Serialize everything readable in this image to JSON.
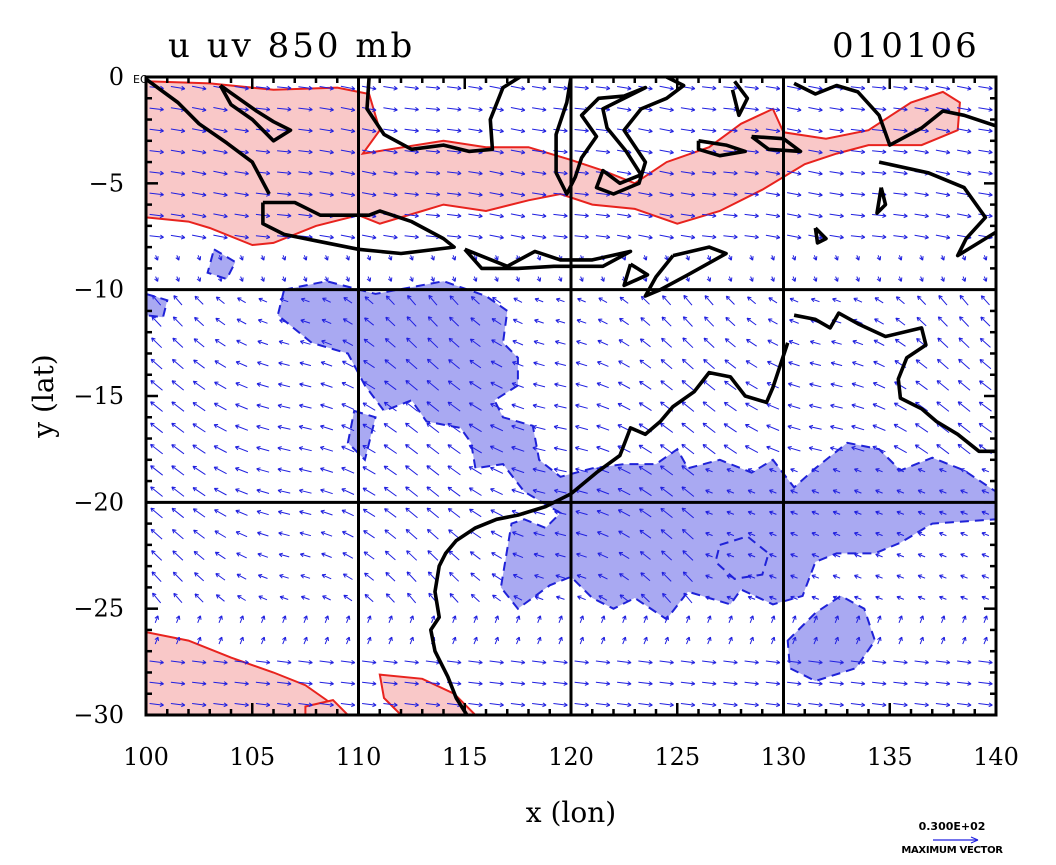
{
  "chart_data": {
    "type": "contour-vector-map",
    "title_left": "u uv 850 mb",
    "title_right": "010106",
    "xlabel": "x (lon)",
    "ylabel": "y (lat)",
    "xlim": [
      100,
      140
    ],
    "ylim": [
      -30,
      0
    ],
    "x_ticks": [
      100,
      105,
      110,
      115,
      120,
      125,
      130,
      135,
      140
    ],
    "x_tick_labels": [
      "100",
      "105",
      "110",
      "115",
      "120",
      "125",
      "130",
      "135",
      "140"
    ],
    "y_ticks": [
      0,
      -5,
      -10,
      -15,
      -20,
      -25,
      -30
    ],
    "y_tick_labels": [
      "0",
      "−5",
      "−10",
      "−15",
      "−20",
      "−25",
      "−30"
    ],
    "y_zero_suffix": "EQ",
    "gridlines_x": [
      110,
      120,
      130
    ],
    "gridlines_y": [
      -10,
      -20
    ],
    "colors": {
      "positive_fill": "#f9c8c8",
      "positive_line": "#e8231e",
      "negative_fill": "#a9a9f2",
      "negative_line": "#1f22d8",
      "vector": "#2020e0",
      "coast": "#000000"
    },
    "positive_regions": [
      [
        [
          100,
          -0.2
        ],
        [
          103,
          -0.3
        ],
        [
          106,
          -0.6
        ],
        [
          109,
          -0.5
        ],
        [
          110.5,
          -0.8
        ],
        [
          111,
          -2.5
        ],
        [
          110.2,
          -3.6
        ],
        [
          111.5,
          -3.4
        ],
        [
          114,
          -3.0
        ],
        [
          116,
          -3.3
        ],
        [
          118,
          -3.3
        ],
        [
          120,
          -3.9
        ],
        [
          121.5,
          -4.4
        ],
        [
          123,
          -5.0
        ],
        [
          124.5,
          -4.0
        ],
        [
          126.5,
          -3.3
        ],
        [
          128,
          -2.2
        ],
        [
          129.5,
          -1.5
        ],
        [
          130,
          -2.6
        ],
        [
          132,
          -2.9
        ],
        [
          134,
          -2.5
        ],
        [
          136,
          -1.2
        ],
        [
          137.5,
          -0.7
        ],
        [
          138.3,
          -1.2
        ],
        [
          138.2,
          -2.5
        ],
        [
          136.5,
          -3.2
        ],
        [
          134,
          -3.2
        ],
        [
          132.5,
          -3.6
        ],
        [
          131,
          -4.1
        ],
        [
          129,
          -5.3
        ],
        [
          127,
          -6.3
        ],
        [
          125,
          -6.9
        ],
        [
          123,
          -6.2
        ],
        [
          121,
          -6.0
        ],
        [
          119.5,
          -5.5
        ],
        [
          118,
          -5.8
        ],
        [
          116,
          -6.3
        ],
        [
          114,
          -6.0
        ],
        [
          113,
          -6.3
        ],
        [
          111,
          -6.9
        ],
        [
          110,
          -6.5
        ],
        [
          108,
          -7.0
        ],
        [
          106,
          -7.8
        ],
        [
          105,
          -7.9
        ],
        [
          103,
          -7.1
        ],
        [
          102,
          -6.8
        ],
        [
          100,
          -6.6
        ]
      ],
      [
        [
          100,
          -26.1
        ],
        [
          102,
          -26.5
        ],
        [
          104,
          -27.3
        ],
        [
          106,
          -28.0
        ],
        [
          107.5,
          -28.6
        ],
        [
          108.5,
          -29.3
        ],
        [
          109.3,
          -30
        ],
        [
          100,
          -30
        ]
      ],
      [
        [
          111,
          -28.1
        ],
        [
          113,
          -28.3
        ],
        [
          114.5,
          -29.0
        ],
        [
          115.5,
          -30
        ],
        [
          112,
          -30
        ],
        [
          111.2,
          -29.2
        ]
      ],
      [
        [
          107.5,
          -29.6
        ],
        [
          108.8,
          -29.3
        ],
        [
          109.5,
          -30
        ],
        [
          107.5,
          -30
        ]
      ]
    ],
    "negative_regions": [
      [
        [
          106.5,
          -10.0
        ],
        [
          108.5,
          -9.6
        ],
        [
          110.8,
          -10.2
        ],
        [
          114,
          -9.6
        ],
        [
          116,
          -10.3
        ],
        [
          117,
          -11.0
        ],
        [
          116.8,
          -12.5
        ],
        [
          117.5,
          -13.2
        ],
        [
          117.5,
          -14.5
        ],
        [
          116.4,
          -15.2
        ],
        [
          116.8,
          -16.0
        ],
        [
          118.2,
          -16.4
        ],
        [
          118.5,
          -18.0
        ],
        [
          119.5,
          -18.8
        ],
        [
          121,
          -18.4
        ],
        [
          122.5,
          -18.2
        ],
        [
          124,
          -18.2
        ],
        [
          125,
          -17.5
        ],
        [
          125.5,
          -18.4
        ],
        [
          127,
          -18.0
        ],
        [
          128.5,
          -18.6
        ],
        [
          129.5,
          -18.0
        ],
        [
          130.5,
          -19.3
        ],
        [
          131.5,
          -18.4
        ],
        [
          133,
          -17.2
        ],
        [
          134.5,
          -17.5
        ],
        [
          135.5,
          -18.5
        ],
        [
          137,
          -17.9
        ],
        [
          138.5,
          -18.5
        ],
        [
          140,
          -19.5
        ],
        [
          140,
          -20.8
        ],
        [
          137,
          -21.0
        ],
        [
          135.5,
          -21.9
        ],
        [
          134.3,
          -22.4
        ],
        [
          132.5,
          -22.4
        ],
        [
          131.5,
          -22.8
        ],
        [
          130.9,
          -24.4
        ],
        [
          129.5,
          -24.8
        ],
        [
          128,
          -24.1
        ],
        [
          127.5,
          -24.8
        ],
        [
          125.5,
          -24.2
        ],
        [
          124.5,
          -25.5
        ],
        [
          123,
          -24.5
        ],
        [
          122,
          -25.0
        ],
        [
          121,
          -24.5
        ],
        [
          120,
          -23.5
        ],
        [
          119,
          -23.9
        ],
        [
          117.5,
          -25.0
        ],
        [
          116.7,
          -24.0
        ],
        [
          117.2,
          -21.0
        ],
        [
          117.8,
          -20.8
        ],
        [
          118.8,
          -21.2
        ],
        [
          119.5,
          -20.5
        ],
        [
          117.8,
          -19.5
        ],
        [
          116.8,
          -18.2
        ],
        [
          115.5,
          -18.4
        ],
        [
          115.3,
          -17.2
        ],
        [
          114.8,
          -16.5
        ],
        [
          113.2,
          -16.2
        ],
        [
          112.5,
          -15.2
        ],
        [
          111.2,
          -15.7
        ],
        [
          110.3,
          -14.5
        ],
        [
          109.5,
          -13.0
        ],
        [
          107.8,
          -12.5
        ],
        [
          106.2,
          -11.2
        ]
      ],
      [
        [
          130.2,
          -26.5
        ],
        [
          131.5,
          -25.2
        ],
        [
          132.7,
          -24.4
        ],
        [
          133.8,
          -25.0
        ],
        [
          134.3,
          -26.5
        ],
        [
          133.4,
          -27.8
        ],
        [
          131.5,
          -28.4
        ],
        [
          130.3,
          -27.8
        ]
      ],
      [
        [
          127,
          -22.0
        ],
        [
          128.3,
          -21.6
        ],
        [
          129.3,
          -22.4
        ],
        [
          129,
          -23.4
        ],
        [
          127.7,
          -23.6
        ],
        [
          126.8,
          -22.8
        ]
      ],
      [
        [
          103.2,
          -8.1
        ],
        [
          104.2,
          -8.7
        ],
        [
          103.8,
          -9.5
        ],
        [
          102.9,
          -9.2
        ]
      ],
      [
        [
          100,
          -10.2
        ],
        [
          101,
          -10.5
        ],
        [
          100.8,
          -11.3
        ],
        [
          100,
          -11.2
        ]
      ],
      [
        [
          109.8,
          -15.7
        ],
        [
          110.8,
          -16.0
        ],
        [
          110.3,
          -18.0
        ],
        [
          109.5,
          -17.2
        ]
      ]
    ],
    "coastlines": [
      [
        [
          100,
          -0.1
        ],
        [
          101.5,
          -1.2
        ],
        [
          102.5,
          -2.2
        ],
        [
          103.8,
          -3.1
        ],
        [
          105,
          -4.0
        ],
        [
          105.8,
          -5.5
        ]
      ],
      [
        [
          103.5,
          -0.4
        ],
        [
          105.2,
          -1.6
        ],
        [
          106,
          -2.1
        ],
        [
          106.8,
          -2.5
        ],
        [
          106,
          -3.0
        ],
        [
          105,
          -2.0
        ],
        [
          104,
          -1.3
        ],
        [
          103.5,
          -0.4
        ]
      ],
      [
        [
          110.5,
          0
        ],
        [
          110.4,
          -1.5
        ],
        [
          111.2,
          -2.7
        ],
        [
          112.5,
          -3.4
        ],
        [
          114,
          -3.2
        ],
        [
          115.2,
          -3.5
        ],
        [
          116.3,
          -3.4
        ],
        [
          116.2,
          -2.0
        ],
        [
          116.8,
          -0.5
        ],
        [
          117.6,
          0
        ]
      ],
      [
        [
          105.5,
          -5.9
        ],
        [
          107,
          -5.9
        ],
        [
          108.2,
          -6.5
        ],
        [
          110.5,
          -6.5
        ],
        [
          111,
          -6.3
        ],
        [
          112.5,
          -6.8
        ],
        [
          114,
          -7.6
        ],
        [
          114.5,
          -8.0
        ],
        [
          112,
          -8.3
        ],
        [
          110,
          -8.1
        ],
        [
          108,
          -7.7
        ],
        [
          106.5,
          -7.4
        ],
        [
          105.5,
          -6.9
        ],
        [
          105.5,
          -5.9
        ]
      ],
      [
        [
          115,
          -8.1
        ],
        [
          116,
          -8.5
        ],
        [
          117,
          -8.9
        ],
        [
          118.3,
          -8.2
        ],
        [
          119.5,
          -8.6
        ],
        [
          121,
          -8.6
        ],
        [
          122.8,
          -8.2
        ],
        [
          121.5,
          -8.9
        ],
        [
          119.2,
          -8.9
        ],
        [
          117.5,
          -9.0
        ],
        [
          115.8,
          -9.0
        ],
        [
          115,
          -8.1
        ]
      ],
      [
        [
          120,
          0
        ],
        [
          119.8,
          -1.2
        ],
        [
          119.3,
          -2.7
        ],
        [
          119.3,
          -4.5
        ],
        [
          119.8,
          -5.5
        ],
        [
          120.2,
          -4.7
        ],
        [
          120.5,
          -3.8
        ],
        [
          121.2,
          -2.8
        ],
        [
          120.5,
          -1.8
        ],
        [
          121.3,
          -1.0
        ],
        [
          122.5,
          -0.9
        ],
        [
          123.5,
          -0.5
        ],
        [
          121.5,
          -1.5
        ],
        [
          121.7,
          -2.4
        ],
        [
          122.6,
          -3.5
        ],
        [
          123.3,
          -4.6
        ],
        [
          122.3,
          -5.0
        ],
        [
          121.5,
          -4.4
        ],
        [
          121.2,
          -5.2
        ],
        [
          122,
          -5.5
        ],
        [
          123.2,
          -5.0
        ],
        [
          123.5,
          -4.0
        ],
        [
          122.5,
          -2.5
        ],
        [
          123.3,
          -1.5
        ],
        [
          124.5,
          -1.0
        ],
        [
          125.3,
          -0.4
        ],
        [
          124.5,
          0
        ]
      ],
      [
        [
          127.7,
          -0.2
        ],
        [
          128.3,
          -1.0
        ],
        [
          127.9,
          -1.8
        ],
        [
          127.6,
          -0.6
        ]
      ],
      [
        [
          126,
          -3.0
        ],
        [
          127.3,
          -3.2
        ],
        [
          128.2,
          -3.5
        ],
        [
          127,
          -3.7
        ],
        [
          126,
          -3.4
        ],
        [
          126,
          -3.0
        ]
      ],
      [
        [
          128.5,
          -2.8
        ],
        [
          130,
          -2.9
        ],
        [
          130.8,
          -3.5
        ],
        [
          129.3,
          -3.4
        ],
        [
          128.5,
          -2.8
        ]
      ],
      [
        [
          124.8,
          -8.4
        ],
        [
          126.5,
          -8.0
        ],
        [
          127.3,
          -8.3
        ],
        [
          125.5,
          -9.3
        ],
        [
          124.2,
          -10.0
        ],
        [
          123.5,
          -10.3
        ],
        [
          124,
          -9.4
        ],
        [
          124.8,
          -8.4
        ]
      ],
      [
        [
          122.8,
          -8.8
        ],
        [
          123.6,
          -9.3
        ],
        [
          122.5,
          -9.8
        ],
        [
          122.8,
          -8.8
        ]
      ],
      [
        [
          130.5,
          -0.3
        ],
        [
          131.5,
          -0.8
        ],
        [
          132.5,
          -0.4
        ],
        [
          133.5,
          -0.7
        ],
        [
          134.5,
          -1.8
        ],
        [
          135,
          -3.2
        ],
        [
          136.5,
          -2.4
        ],
        [
          137.5,
          -1.6
        ],
        [
          138.5,
          -1.8
        ],
        [
          140,
          -2.3
        ]
      ],
      [
        [
          134.5,
          -4.0
        ],
        [
          136.8,
          -4.5
        ],
        [
          138.5,
          -5.2
        ],
        [
          139.5,
          -6.6
        ],
        [
          138.6,
          -7.6
        ],
        [
          138.2,
          -8.4
        ],
        [
          139.5,
          -7.6
        ],
        [
          140,
          -7.3
        ]
      ],
      [
        [
          134.6,
          -5.2
        ],
        [
          134.8,
          -6.0
        ],
        [
          134.4,
          -6.4
        ],
        [
          134.6,
          -5.2
        ]
      ],
      [
        [
          131.5,
          -7.1
        ],
        [
          132,
          -7.6
        ],
        [
          131.6,
          -7.8
        ],
        [
          131.5,
          -7.1
        ]
      ],
      [
        [
          130.5,
          -11.2
        ],
        [
          131.5,
          -11.4
        ],
        [
          132.2,
          -11.8
        ],
        [
          132.6,
          -11.1
        ],
        [
          133.5,
          -11.6
        ],
        [
          134.8,
          -12.2
        ],
        [
          136.5,
          -11.8
        ],
        [
          136.7,
          -12.6
        ],
        [
          135.8,
          -13.2
        ],
        [
          135.4,
          -14.2
        ],
        [
          135.5,
          -15.1
        ],
        [
          136.5,
          -15.6
        ],
        [
          137.2,
          -16.2
        ],
        [
          138.2,
          -16.8
        ],
        [
          139.2,
          -17.6
        ],
        [
          140,
          -17.6
        ]
      ],
      [
        [
          130.2,
          -12.5
        ],
        [
          129.5,
          -14.6
        ],
        [
          129.2,
          -15.3
        ],
        [
          128.2,
          -15.0
        ],
        [
          127.5,
          -14.1
        ],
        [
          126.5,
          -13.9
        ],
        [
          125.8,
          -14.8
        ],
        [
          124.8,
          -15.5
        ],
        [
          124.2,
          -16.2
        ],
        [
          123.5,
          -16.8
        ],
        [
          122.8,
          -16.5
        ],
        [
          122.3,
          -17.8
        ],
        [
          121.2,
          -18.6
        ],
        [
          120,
          -19.6
        ],
        [
          118.8,
          -20.2
        ],
        [
          117.5,
          -20.6
        ],
        [
          116.5,
          -20.8
        ],
        [
          115.5,
          -21.2
        ],
        [
          114.6,
          -21.8
        ],
        [
          114.1,
          -22.4
        ],
        [
          113.8,
          -23.0
        ],
        [
          113.6,
          -24.2
        ],
        [
          113.8,
          -25.4
        ],
        [
          113.4,
          -26.0
        ],
        [
          113.6,
          -27.0
        ],
        [
          114.2,
          -28.2
        ],
        [
          114.6,
          -29.2
        ],
        [
          115.1,
          -30
        ]
      ]
    ],
    "vector_field": {
      "x_start": 100.5,
      "x_end": 139.5,
      "x_step": 1.0,
      "y_start": -0.5,
      "y_end": -29.5,
      "y_step": -1.0,
      "description": "850 mb wind vectors: westerlies north of 9S, southeasterly trades 9S-26S, westerlies south of 26S"
    },
    "legend_value": "0.300E+02",
    "legend_label": "MAXIMUM VECTOR"
  }
}
